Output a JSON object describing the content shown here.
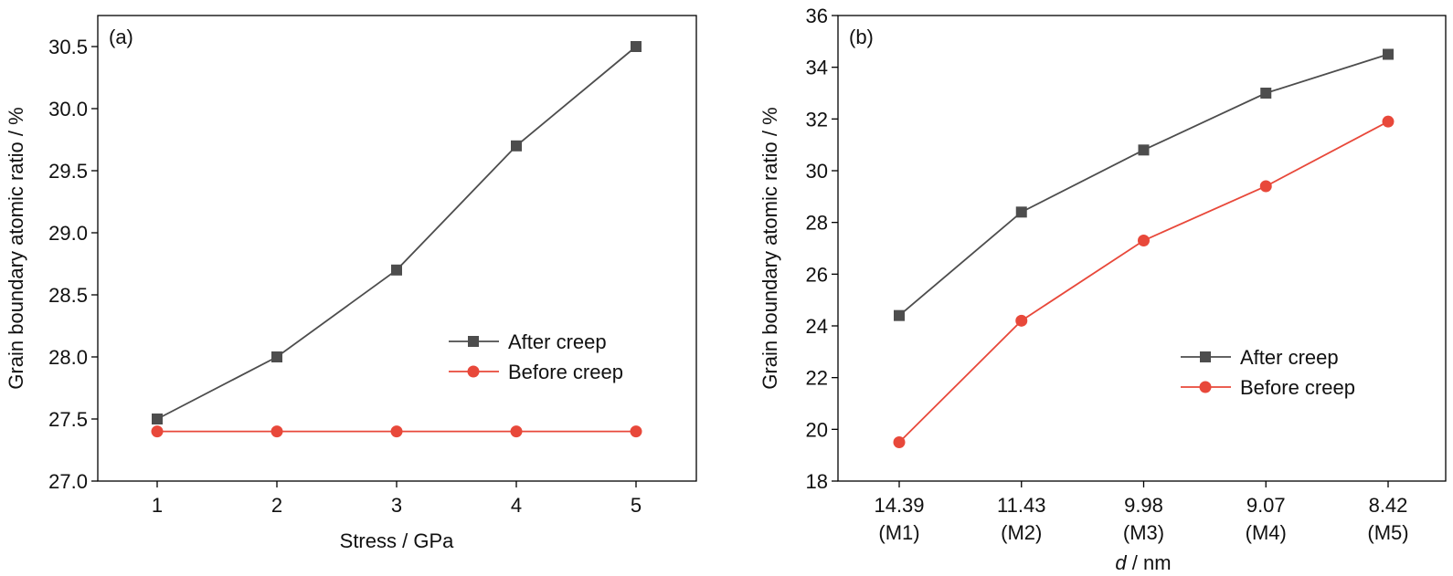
{
  "colors": {
    "after": "#4d4d4d",
    "before": "#e8483a"
  },
  "chart_data": [
    {
      "type": "line",
      "panel_label": "(a)",
      "xlabel": "Stress / GPa",
      "ylabel": "Grain boundary atomic ratio / %",
      "x": [
        1,
        2,
        3,
        4,
        5
      ],
      "x_tick_labels": [
        "1",
        "2",
        "3",
        "4",
        "5"
      ],
      "ylim": [
        27.0,
        30.75
      ],
      "y_ticks": [
        "27.0",
        "27.5",
        "28.0",
        "28.5",
        "29.0",
        "29.5",
        "30.0",
        "30.5"
      ],
      "legend_position": "center-right",
      "series": [
        {
          "name": "After creep",
          "marker": "square",
          "color": "#4d4d4d",
          "values": [
            27.5,
            28.0,
            28.7,
            29.7,
            30.5
          ]
        },
        {
          "name": "Before creep",
          "marker": "circle",
          "color": "#e8483a",
          "values": [
            27.4,
            27.4,
            27.4,
            27.4,
            27.4
          ]
        }
      ]
    },
    {
      "type": "line",
      "panel_label": "(b)",
      "xlabel_italic": "d",
      "xlabel_rest": " / nm",
      "ylabel": "Grain boundary atomic ratio / %",
      "categories": [
        "14.39",
        "11.43",
        "9.98",
        "9.07",
        "8.42"
      ],
      "category_sublabels": [
        "(M1)",
        "(M2)",
        "(M3)",
        "(M4)",
        "(M5)"
      ],
      "ylim": [
        18,
        36
      ],
      "y_ticks": [
        "18",
        "20",
        "22",
        "24",
        "26",
        "28",
        "30",
        "32",
        "34",
        "36"
      ],
      "legend_position": "center-right",
      "series": [
        {
          "name": "After creep",
          "marker": "square",
          "color": "#4d4d4d",
          "values": [
            24.4,
            28.4,
            30.8,
            33.0,
            34.5
          ]
        },
        {
          "name": "Before creep",
          "marker": "circle",
          "color": "#e8483a",
          "values": [
            19.5,
            24.2,
            27.3,
            29.4,
            31.9
          ]
        }
      ]
    }
  ]
}
